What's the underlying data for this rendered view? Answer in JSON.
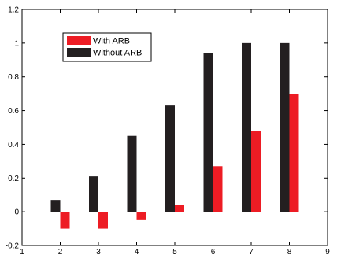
{
  "chart_data": {
    "type": "bar",
    "title": "",
    "xlabel": "",
    "ylabel": "",
    "x": [
      2,
      3,
      4,
      5,
      6,
      7,
      8
    ],
    "xlim": [
      1,
      9
    ],
    "ylim": [
      -0.2,
      1.2
    ],
    "xticks": [
      "1",
      "2",
      "3",
      "4",
      "5",
      "6",
      "7",
      "8",
      "9"
    ],
    "yticks": [
      "-0.2",
      "0",
      "0.2",
      "0.4",
      "0.6",
      "0.8",
      "1",
      "1.2"
    ],
    "grid": false,
    "legend_position": "top-left",
    "series": [
      {
        "name": "With ARB",
        "color": "#ed1c24",
        "values": [
          -0.1,
          -0.1,
          -0.05,
          0.04,
          0.27,
          0.48,
          0.7
        ]
      },
      {
        "name": "Without ARB",
        "color": "#231f20",
        "values": [
          0.07,
          0.21,
          0.45,
          0.63,
          0.94,
          1.0,
          1.0
        ]
      }
    ]
  }
}
